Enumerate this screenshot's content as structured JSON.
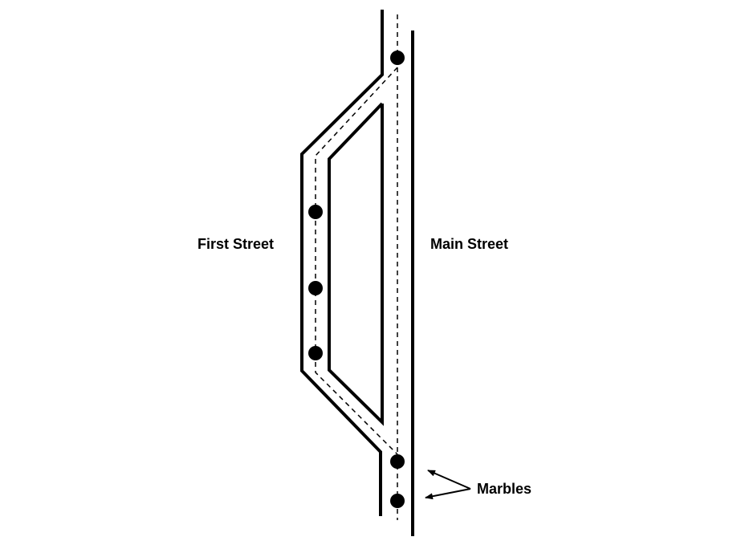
{
  "labels": {
    "first_street": "First Street",
    "main_street": "Main Street",
    "marbles": "Marbles"
  },
  "colors": {
    "ink": "#000000",
    "background": "#ffffff"
  },
  "marble_count": 6
}
